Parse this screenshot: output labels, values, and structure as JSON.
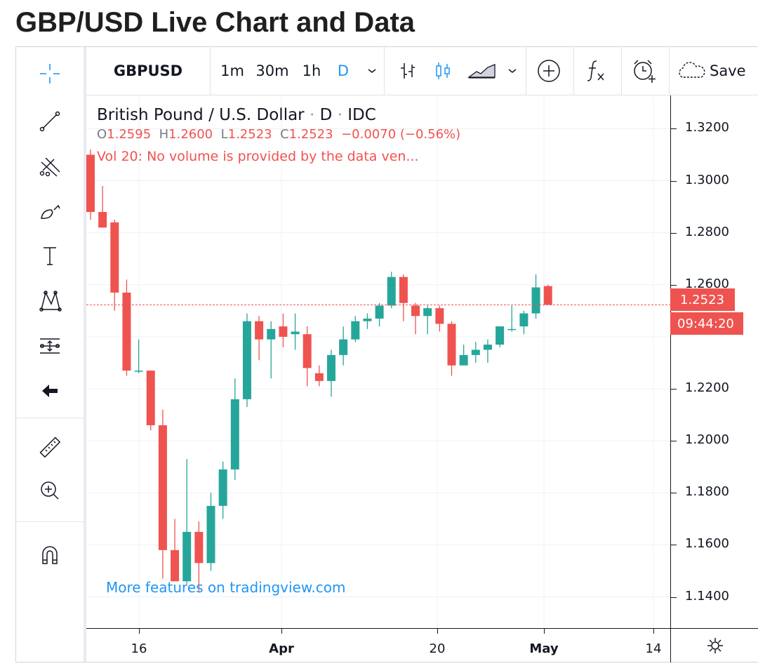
{
  "page": {
    "title": "GBP/USD Live Chart and Data"
  },
  "toolbar": {
    "symbol": "GBPUSD",
    "intervals": [
      "1m",
      "30m",
      "1h",
      "D"
    ],
    "active_interval": "D",
    "save_label": "Save"
  },
  "legend": {
    "title": "British Pound / U.S. Dollar",
    "interval": "D",
    "source": "IDC",
    "o_label": "O",
    "o": "1.2595",
    "h_label": "H",
    "h": "1.2600",
    "l_label": "L",
    "l": "1.2523",
    "c_label": "C",
    "c": "1.2523",
    "change": "−0.0070 (−0.56%)",
    "volume_note": "Vol 20: No volume is provided by the data ven..."
  },
  "price_scale": {
    "labels": [
      "1.3200",
      "1.3000",
      "1.2800",
      "1.2600",
      "1.2200",
      "1.2000",
      "1.1800",
      "1.1600",
      "1.1400"
    ],
    "current_price": "1.2523",
    "countdown": "09:44:20"
  },
  "time_scale": {
    "labels": [
      {
        "text": "16",
        "bold": false
      },
      {
        "text": "Apr",
        "bold": true
      },
      {
        "text": "20",
        "bold": false
      },
      {
        "text": "May",
        "bold": true
      },
      {
        "text": "14",
        "bold": false
      }
    ]
  },
  "promo_link": "More features on tradingview.com",
  "colors": {
    "up": "#26a69a",
    "down": "#ef5350",
    "link": "#2196f3"
  },
  "chart_data": {
    "type": "candlestick",
    "title": "British Pound / U.S. Dollar",
    "xlabel": "",
    "ylabel": "",
    "ylim": [
      1.128,
      1.3328
    ],
    "candles": [
      {
        "o": 1.31,
        "h": 1.312,
        "l": 1.285,
        "c": 1.288
      },
      {
        "o": 1.288,
        "h": 1.298,
        "l": 1.282,
        "c": 1.282
      },
      {
        "o": 1.284,
        "h": 1.285,
        "l": 1.25,
        "c": 1.257
      },
      {
        "o": 1.257,
        "h": 1.262,
        "l": 1.225,
        "c": 1.227
      },
      {
        "o": 1.227,
        "h": 1.239,
        "l": 1.226,
        "c": 1.227
      },
      {
        "o": 1.227,
        "h": 1.227,
        "l": 1.204,
        "c": 1.206
      },
      {
        "o": 1.206,
        "h": 1.212,
        "l": 1.147,
        "c": 1.158
      },
      {
        "o": 1.158,
        "h": 1.17,
        "l": 1.146,
        "c": 1.146
      },
      {
        "o": 1.146,
        "h": 1.193,
        "l": 1.145,
        "c": 1.165
      },
      {
        "o": 1.165,
        "h": 1.169,
        "l": 1.142,
        "c": 1.153
      },
      {
        "o": 1.153,
        "h": 1.18,
        "l": 1.15,
        "c": 1.175
      },
      {
        "o": 1.175,
        "h": 1.192,
        "l": 1.17,
        "c": 1.189
      },
      {
        "o": 1.189,
        "h": 1.224,
        "l": 1.185,
        "c": 1.216
      },
      {
        "o": 1.216,
        "h": 1.249,
        "l": 1.213,
        "c": 1.246
      },
      {
        "o": 1.246,
        "h": 1.248,
        "l": 1.231,
        "c": 1.239
      },
      {
        "o": 1.239,
        "h": 1.246,
        "l": 1.224,
        "c": 1.243
      },
      {
        "o": 1.244,
        "h": 1.249,
        "l": 1.236,
        "c": 1.24
      },
      {
        "o": 1.241,
        "h": 1.249,
        "l": 1.235,
        "c": 1.242
      },
      {
        "o": 1.241,
        "h": 1.244,
        "l": 1.221,
        "c": 1.228
      },
      {
        "o": 1.226,
        "h": 1.229,
        "l": 1.221,
        "c": 1.223
      },
      {
        "o": 1.223,
        "h": 1.235,
        "l": 1.217,
        "c": 1.233
      },
      {
        "o": 1.233,
        "h": 1.244,
        "l": 1.229,
        "c": 1.239
      },
      {
        "o": 1.239,
        "h": 1.248,
        "l": 1.238,
        "c": 1.246
      },
      {
        "o": 1.246,
        "h": 1.249,
        "l": 1.243,
        "c": 1.247
      },
      {
        "o": 1.247,
        "h": 1.253,
        "l": 1.244,
        "c": 1.252
      },
      {
        "o": 1.252,
        "h": 1.265,
        "l": 1.251,
        "c": 1.263
      },
      {
        "o": 1.263,
        "h": 1.264,
        "l": 1.246,
        "c": 1.253
      },
      {
        "o": 1.252,
        "h": 1.253,
        "l": 1.241,
        "c": 1.248
      },
      {
        "o": 1.248,
        "h": 1.252,
        "l": 1.241,
        "c": 1.251
      },
      {
        "o": 1.251,
        "h": 1.252,
        "l": 1.242,
        "c": 1.245
      },
      {
        "o": 1.245,
        "h": 1.246,
        "l": 1.225,
        "c": 1.229
      },
      {
        "o": 1.229,
        "h": 1.237,
        "l": 1.229,
        "c": 1.233
      },
      {
        "o": 1.233,
        "h": 1.238,
        "l": 1.23,
        "c": 1.235
      },
      {
        "o": 1.235,
        "h": 1.239,
        "l": 1.23,
        "c": 1.237
      },
      {
        "o": 1.237,
        "h": 1.244,
        "l": 1.236,
        "c": 1.244
      },
      {
        "o": 1.243,
        "h": 1.252,
        "l": 1.242,
        "c": 1.243
      },
      {
        "o": 1.244,
        "h": 1.25,
        "l": 1.241,
        "c": 1.249
      },
      {
        "o": 1.249,
        "h": 1.264,
        "l": 1.247,
        "c": 1.259
      },
      {
        "o": 1.2595,
        "h": 1.26,
        "l": 1.2523,
        "c": 1.2523
      }
    ]
  }
}
